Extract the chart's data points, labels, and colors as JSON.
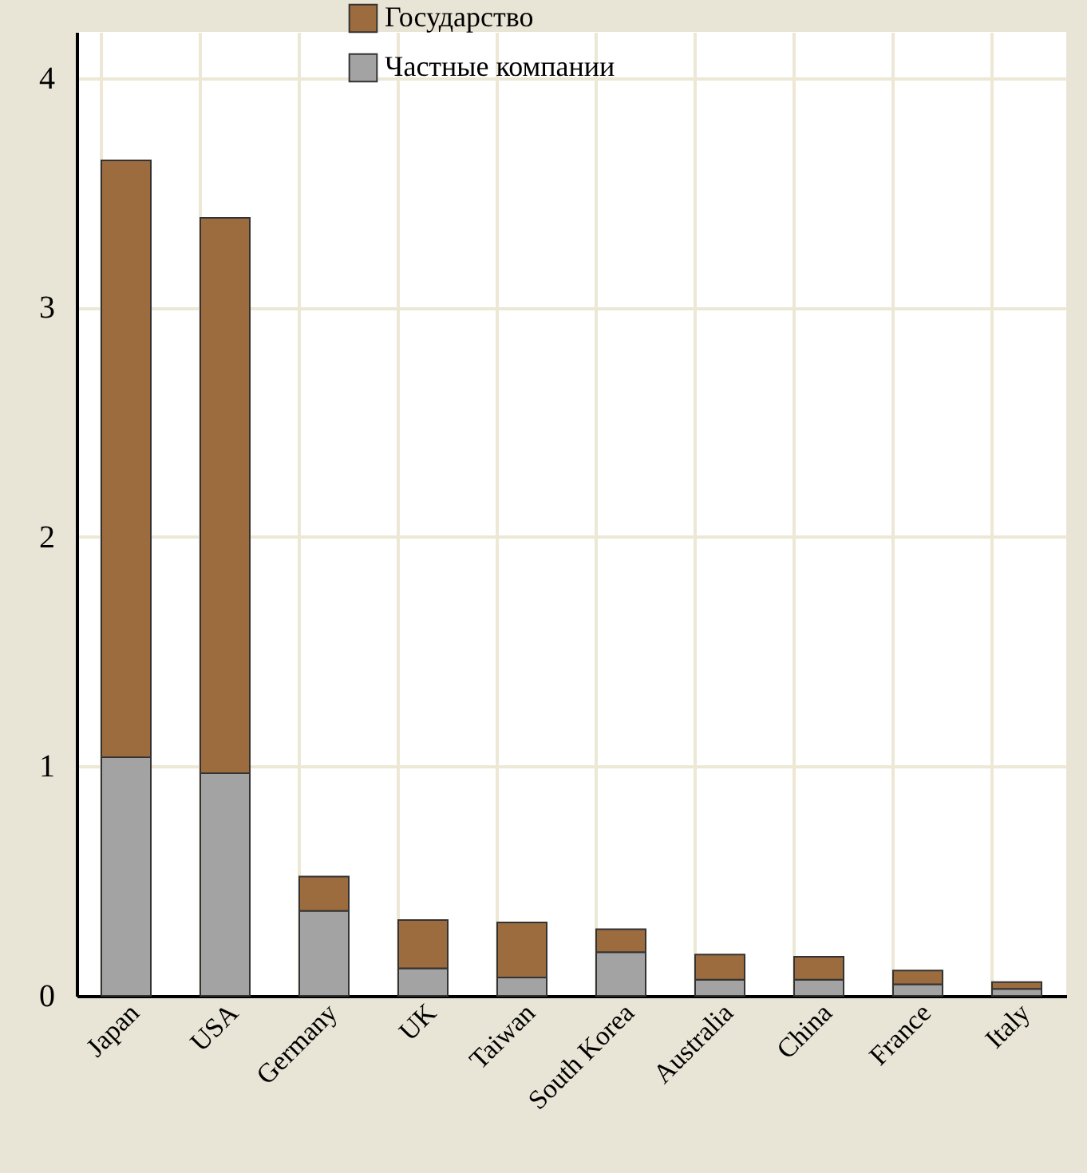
{
  "chart_data": {
    "type": "bar",
    "stacked": true,
    "categories": [
      "Japan",
      "USA",
      "Germany",
      "UK",
      "Taiwan",
      "South Korea",
      "Australia",
      "China",
      "France",
      "Italy"
    ],
    "series": [
      {
        "name": "Частные компании",
        "color": "#a3a3a3",
        "values": [
          1.04,
          0.97,
          0.37,
          0.12,
          0.08,
          0.19,
          0.07,
          0.07,
          0.05,
          0.03
        ]
      },
      {
        "name": "Государство",
        "color": "#9c6b3e",
        "values": [
          2.6,
          2.42,
          0.15,
          0.21,
          0.24,
          0.1,
          0.11,
          0.1,
          0.06,
          0.03
        ]
      }
    ],
    "ylim": [
      0,
      4.2
    ],
    "yticks": [
      0,
      1,
      2,
      3,
      4
    ],
    "grid": true,
    "legend": "top"
  }
}
